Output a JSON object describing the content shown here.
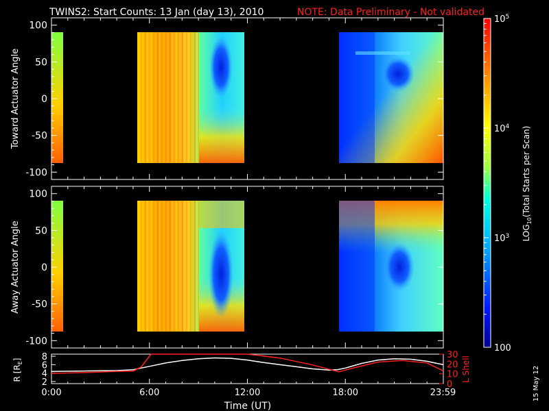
{
  "header": {
    "title": "TWINS2: Start Counts: 13 Jan (day  13), 2010",
    "note": "NOTE: Data Preliminary - Not validated"
  },
  "side_date": "15 May 12",
  "colorbar": {
    "label_main": "LOG",
    "label_sub": "10",
    "label_rest": "(Total Starts per Scan)",
    "ticks": [
      {
        "value": 100,
        "label": "100"
      },
      {
        "value": 1000,
        "label": "10",
        "exp": "3"
      },
      {
        "value": 10000,
        "label": "10",
        "exp": "4"
      },
      {
        "value": 100000,
        "label": "10",
        "exp": "5"
      }
    ],
    "range": [
      100,
      100000
    ],
    "scale": "log"
  },
  "colors": {
    "background": "#000000",
    "axes": "#ffffff",
    "note": "#ff2020",
    "lshell": "#ff2020",
    "rline": "#ffffff"
  },
  "chart_data": [
    {
      "type": "heatmap",
      "name": "toward",
      "ylabel": "Toward Actuator Angle",
      "ylim": [
        -110,
        110
      ],
      "yticks": [
        100,
        50,
        0,
        -50,
        -100
      ],
      "xlim": [
        0,
        24
      ],
      "angle_range": [
        -90,
        90
      ],
      "data_intervals": [
        [
          0,
          0.12
        ],
        [
          4.9,
          11.95
        ],
        [
          17.5,
          23.9
        ]
      ]
    },
    {
      "type": "heatmap",
      "name": "away",
      "ylabel": "Away Actuator Angle",
      "ylim": [
        -110,
        110
      ],
      "yticks": [
        100,
        50,
        0,
        -50,
        -100
      ],
      "xlim": [
        0,
        24
      ],
      "angle_range": [
        -90,
        90
      ],
      "data_intervals": [
        [
          0,
          0.12
        ],
        [
          4.9,
          11.95
        ],
        [
          17.5,
          23.9
        ]
      ]
    },
    {
      "type": "line",
      "name": "orbit",
      "xlabel": "Time (UT)",
      "xlim": [
        0,
        24
      ],
      "xticks": [
        {
          "value": 0,
          "label": "0:00"
        },
        {
          "value": 6,
          "label": "6:00"
        },
        {
          "value": 12,
          "label": "12:00"
        },
        {
          "value": 18,
          "label": "18:00"
        },
        {
          "value": 23.98,
          "label": "23:59"
        }
      ],
      "ylabel_left": "R [R",
      "ylabel_left_sub": "E",
      "ylabel_left_end": "]",
      "ylim_left": [
        1.5,
        8.5
      ],
      "yticks_left": [
        2,
        4,
        6,
        8
      ],
      "ylabel_right": "L Shell",
      "ylim_right": [
        0,
        30
      ],
      "yticks_right": [
        0,
        10,
        20,
        30
      ],
      "series": [
        {
          "axis": "left",
          "x": [
            0,
            2,
            4,
            5,
            6,
            7,
            8,
            9,
            10,
            11,
            12,
            13,
            14,
            15,
            16,
            17,
            17.5,
            18,
            19,
            20,
            21,
            22,
            23,
            24
          ],
          "y": [
            4.4,
            4.5,
            4.6,
            4.8,
            5.6,
            6.4,
            7.0,
            7.4,
            7.6,
            7.5,
            7.1,
            6.5,
            6.0,
            5.5,
            5.0,
            4.7,
            4.8,
            5.2,
            6.3,
            7.1,
            7.4,
            7.3,
            6.8,
            6.0
          ]
        },
        {
          "axis": "right",
          "x": [
            0,
            1,
            2,
            3,
            4,
            5,
            5.5,
            6.1,
            11.95,
            12.5,
            14,
            16,
            17.6,
            18.5,
            20,
            21.5,
            23,
            24
          ],
          "y": [
            10.5,
            10.8,
            11.2,
            11.8,
            12.5,
            12.8,
            17,
            30,
            30,
            29,
            26,
            19,
            12,
            16,
            22,
            23.5,
            21,
            13
          ]
        }
      ]
    }
  ]
}
